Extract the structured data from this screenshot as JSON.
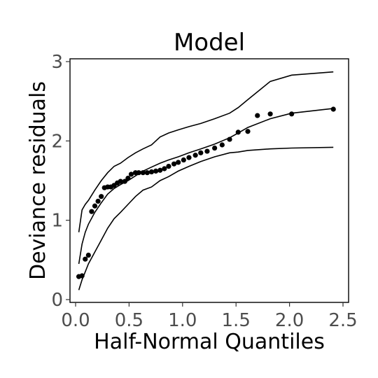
{
  "chart_data": {
    "type": "scatter",
    "title": "Model",
    "xlabel": "Half-Normal Quantiles",
    "ylabel": "Deviance residuals",
    "xlim": [
      0,
      2.5
    ],
    "ylim": [
      0,
      3
    ],
    "xticks": [
      "0.0",
      "0.5",
      "1.0",
      "1.5",
      "2.0",
      "2.5"
    ],
    "yticks": [
      "0",
      "1",
      "2",
      "3"
    ],
    "grid": false,
    "points": [
      {
        "x": 0.03,
        "y": 0.29
      },
      {
        "x": 0.06,
        "y": 0.3
      },
      {
        "x": 0.09,
        "y": 0.51
      },
      {
        "x": 0.12,
        "y": 0.56
      },
      {
        "x": 0.15,
        "y": 1.11
      },
      {
        "x": 0.18,
        "y": 1.18
      },
      {
        "x": 0.21,
        "y": 1.24
      },
      {
        "x": 0.24,
        "y": 1.3
      },
      {
        "x": 0.27,
        "y": 1.41
      },
      {
        "x": 0.3,
        "y": 1.42
      },
      {
        "x": 0.33,
        "y": 1.42
      },
      {
        "x": 0.36,
        "y": 1.44
      },
      {
        "x": 0.39,
        "y": 1.47
      },
      {
        "x": 0.42,
        "y": 1.49
      },
      {
        "x": 0.46,
        "y": 1.49
      },
      {
        "x": 0.49,
        "y": 1.53
      },
      {
        "x": 0.52,
        "y": 1.58
      },
      {
        "x": 0.56,
        "y": 1.6
      },
      {
        "x": 0.59,
        "y": 1.6
      },
      {
        "x": 0.63,
        "y": 1.6
      },
      {
        "x": 0.67,
        "y": 1.6
      },
      {
        "x": 0.71,
        "y": 1.61
      },
      {
        "x": 0.75,
        "y": 1.62
      },
      {
        "x": 0.79,
        "y": 1.63
      },
      {
        "x": 0.83,
        "y": 1.65
      },
      {
        "x": 0.87,
        "y": 1.68
      },
      {
        "x": 0.92,
        "y": 1.71
      },
      {
        "x": 0.96,
        "y": 1.73
      },
      {
        "x": 1.01,
        "y": 1.76
      },
      {
        "x": 1.06,
        "y": 1.79
      },
      {
        "x": 1.12,
        "y": 1.82
      },
      {
        "x": 1.17,
        "y": 1.85
      },
      {
        "x": 1.23,
        "y": 1.87
      },
      {
        "x": 1.3,
        "y": 1.91
      },
      {
        "x": 1.37,
        "y": 1.95
      },
      {
        "x": 1.44,
        "y": 2.02
      },
      {
        "x": 1.52,
        "y": 2.11
      },
      {
        "x": 1.61,
        "y": 2.12
      },
      {
        "x": 1.7,
        "y": 2.32
      },
      {
        "x": 1.82,
        "y": 2.34
      },
      {
        "x": 2.02,
        "y": 2.34
      },
      {
        "x": 2.41,
        "y": 2.4
      }
    ],
    "envelope": {
      "upper": [
        [
          0.03,
          0.85
        ],
        [
          0.06,
          1.13
        ],
        [
          0.09,
          1.2
        ],
        [
          0.12,
          1.25
        ],
        [
          0.18,
          1.38
        ],
        [
          0.24,
          1.5
        ],
        [
          0.3,
          1.6
        ],
        [
          0.36,
          1.68
        ],
        [
          0.42,
          1.72
        ],
        [
          0.49,
          1.79
        ],
        [
          0.56,
          1.85
        ],
        [
          0.63,
          1.9
        ],
        [
          0.71,
          1.95
        ],
        [
          0.79,
          2.05
        ],
        [
          0.87,
          2.1
        ],
        [
          0.96,
          2.14
        ],
        [
          1.06,
          2.18
        ],
        [
          1.17,
          2.22
        ],
        [
          1.3,
          2.28
        ],
        [
          1.44,
          2.35
        ],
        [
          1.52,
          2.42
        ],
        [
          1.61,
          2.52
        ],
        [
          1.82,
          2.75
        ],
        [
          2.02,
          2.83
        ],
        [
          2.41,
          2.87
        ]
      ],
      "mean": [
        [
          0.03,
          0.45
        ],
        [
          0.06,
          0.7
        ],
        [
          0.09,
          0.85
        ],
        [
          0.12,
          0.95
        ],
        [
          0.18,
          1.1
        ],
        [
          0.24,
          1.22
        ],
        [
          0.3,
          1.33
        ],
        [
          0.36,
          1.4
        ],
        [
          0.42,
          1.45
        ],
        [
          0.49,
          1.5
        ],
        [
          0.56,
          1.56
        ],
        [
          0.63,
          1.62
        ],
        [
          0.71,
          1.67
        ],
        [
          0.79,
          1.72
        ],
        [
          0.87,
          1.76
        ],
        [
          0.96,
          1.8
        ],
        [
          1.06,
          1.85
        ],
        [
          1.17,
          1.9
        ],
        [
          1.3,
          1.96
        ],
        [
          1.44,
          2.04
        ],
        [
          1.52,
          2.1
        ],
        [
          1.61,
          2.17
        ],
        [
          1.82,
          2.28
        ],
        [
          2.02,
          2.35
        ],
        [
          2.41,
          2.41
        ]
      ],
      "lower": [
        [
          0.03,
          0.12
        ],
        [
          0.06,
          0.25
        ],
        [
          0.09,
          0.35
        ],
        [
          0.12,
          0.45
        ],
        [
          0.18,
          0.6
        ],
        [
          0.24,
          0.75
        ],
        [
          0.3,
          0.9
        ],
        [
          0.36,
          1.02
        ],
        [
          0.42,
          1.1
        ],
        [
          0.49,
          1.2
        ],
        [
          0.56,
          1.3
        ],
        [
          0.63,
          1.38
        ],
        [
          0.71,
          1.42
        ],
        [
          0.79,
          1.5
        ],
        [
          0.87,
          1.55
        ],
        [
          0.96,
          1.62
        ],
        [
          1.06,
          1.68
        ],
        [
          1.17,
          1.74
        ],
        [
          1.3,
          1.8
        ],
        [
          1.44,
          1.85
        ],
        [
          1.52,
          1.86
        ],
        [
          1.61,
          1.88
        ],
        [
          1.82,
          1.9
        ],
        [
          2.02,
          1.91
        ],
        [
          2.41,
          1.92
        ]
      ]
    }
  }
}
